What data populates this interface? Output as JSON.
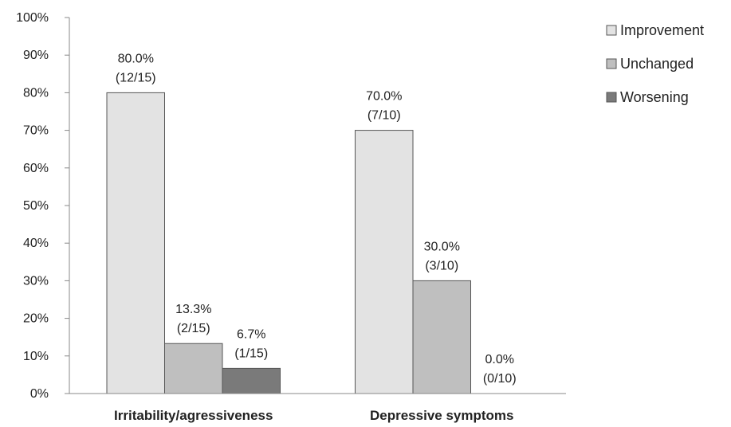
{
  "chart_data": {
    "type": "bar",
    "categories": [
      "Irritability/agressiveness",
      "Depressive symptoms"
    ],
    "series": [
      {
        "name": "Improvement",
        "values": [
          80.0,
          70.0
        ],
        "labels": [
          [
            "80.0%",
            "(12/15)"
          ],
          [
            "70.0%",
            "(7/10)"
          ]
        ],
        "color": "#e3e3e3"
      },
      {
        "name": "Unchanged",
        "values": [
          13.3,
          30.0
        ],
        "labels": [
          [
            "13.3%",
            "(2/15)"
          ],
          [
            "30.0%",
            "(3/10)"
          ]
        ],
        "color": "#bfbfbf"
      },
      {
        "name": "Worsening",
        "values": [
          6.7,
          0.0
        ],
        "labels": [
          [
            "6.7%",
            "(1/15)"
          ],
          [
            "0.0%",
            "(0/10)"
          ]
        ],
        "color": "#7a7a7a"
      }
    ],
    "ylim": [
      0,
      100
    ],
    "yticks": [
      "0%",
      "10%",
      "20%",
      "30%",
      "40%",
      "50%",
      "60%",
      "70%",
      "80%",
      "90%",
      "100%"
    ],
    "grid": false,
    "legend_position": "top-right",
    "title": "",
    "xlabel": "",
    "ylabel": ""
  }
}
